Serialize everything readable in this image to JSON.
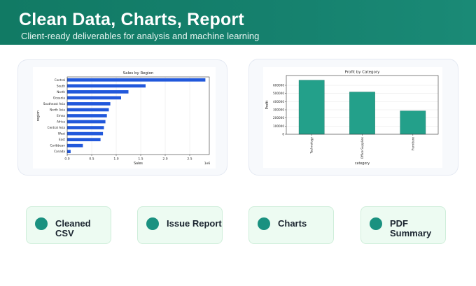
{
  "header": {
    "title": "Clean Data, Charts, Report",
    "subtitle": "Client-ready deliverables for analysis and machine learning"
  },
  "colors": {
    "banner": "#117a64",
    "bar_blue": "#2158db",
    "bar_teal": "#23a08a",
    "pill_dot": "#1a9180"
  },
  "chart_data": [
    {
      "type": "bar",
      "orientation": "horizontal",
      "title": "Sales by Region",
      "xlabel": "Sales",
      "ylabel": "region",
      "x_scale_note": "1e6",
      "xlim": [
        0,
        2.9
      ],
      "xticks": [
        "0.0",
        "0.5",
        "1.0",
        "1.5",
        "2.0",
        "2.5"
      ],
      "categories": [
        "Central",
        "South",
        "North",
        "Oceania",
        "Southeast Asia",
        "North Asia",
        "Emea",
        "Africa",
        "Central Asia",
        "West",
        "East",
        "Caribbean",
        "Canada"
      ],
      "values": [
        2.82,
        1.6,
        1.25,
        1.1,
        0.88,
        0.85,
        0.81,
        0.78,
        0.75,
        0.73,
        0.68,
        0.32,
        0.07
      ],
      "grid": "vertical"
    },
    {
      "type": "bar",
      "title": "Profit by Category",
      "xlabel": "category",
      "ylabel": "Profit",
      "ylim": [
        0,
        720000
      ],
      "yticks": [
        "0",
        "100000",
        "200000",
        "300000",
        "400000",
        "500000",
        "600000"
      ],
      "categories": [
        "Technology",
        "Office Supplies",
        "Furniture"
      ],
      "values": [
        663000,
        518000,
        286000
      ],
      "grid": "horizontal"
    }
  ],
  "deliverables": [
    {
      "label": "Cleaned CSV"
    },
    {
      "label": "Issue Report"
    },
    {
      "label": "Charts"
    },
    {
      "label": "PDF Summary"
    }
  ]
}
